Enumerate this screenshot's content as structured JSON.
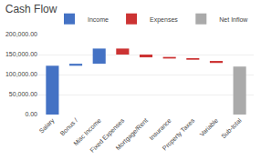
{
  "chart_data": {
    "type": "bar",
    "title": "Cash Flow",
    "categories": [
      "Salary",
      "Bonus /",
      "Misc Income",
      "Fixed Expenses",
      "Mortgage/Rent",
      "Insurance",
      "Property Taxes",
      "Variable",
      "Sub-total"
    ],
    "series": [
      {
        "name": "Income",
        "color": "#4472C4",
        "values": [
          122000,
          5000,
          38000,
          null,
          null,
          null,
          null,
          null,
          null
        ],
        "bases": [
          0,
          122000,
          127000,
          null,
          null,
          null,
          null,
          null,
          null
        ]
      },
      {
        "name": "Expenses",
        "color": "#CC3333",
        "values": [
          null,
          null,
          null,
          15000,
          7000,
          4000,
          4000,
          5000,
          null
        ],
        "bases": [
          null,
          null,
          null,
          150000,
          143000,
          140000,
          137000,
          129000,
          null
        ]
      },
      {
        "name": "Net Inflow",
        "color": "#AAAAAA",
        "values": [
          null,
          null,
          null,
          null,
          null,
          null,
          null,
          null,
          120000
        ],
        "bases": [
          null,
          null,
          null,
          null,
          null,
          null,
          null,
          null,
          0
        ]
      }
    ],
    "ylim": [
      0,
      200000
    ],
    "yticks": [
      {
        "value": 0,
        "label": "0.00"
      },
      {
        "value": 50000,
        "label": "50,000.00"
      },
      {
        "value": 100000,
        "label": "100,000.00"
      },
      {
        "value": 150000,
        "label": "150,000.00"
      },
      {
        "value": 200000,
        "label": "200,000.00"
      }
    ],
    "grid": true,
    "legend": "upper right"
  }
}
